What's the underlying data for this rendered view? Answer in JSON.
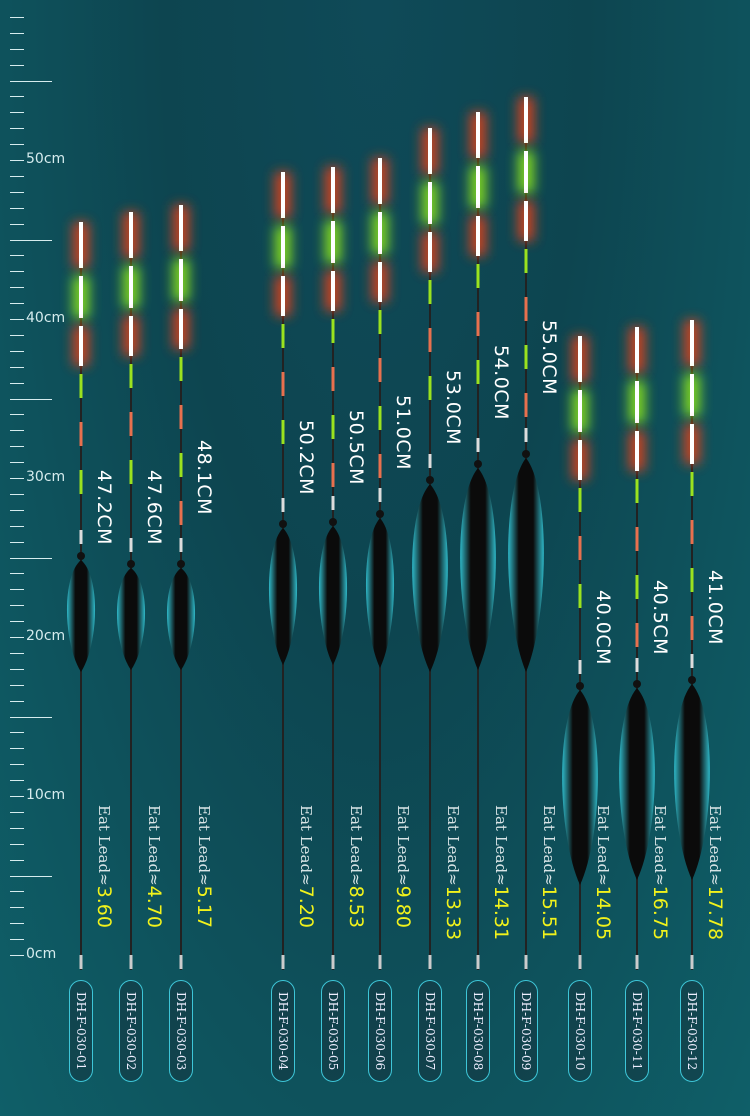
{
  "ruler": {
    "labels": [
      "0cm",
      "10cm",
      "20cm",
      "30cm",
      "40cm",
      "50cm"
    ]
  },
  "eat_lead_label": "Eat Lead",
  "approx_symbol": "≈",
  "floats": [
    {
      "model": "DH-F-030-01",
      "length": "47.2CM",
      "lead": "3.60"
    },
    {
      "model": "DH-F-030-02",
      "length": "47.6CM",
      "lead": "4.70"
    },
    {
      "model": "DH-F-030-03",
      "length": "48.1CM",
      "lead": "5.17"
    },
    {
      "model": "DH-F-030-04",
      "length": "50.2CM",
      "lead": "7.20"
    },
    {
      "model": "DH-F-030-05",
      "length": "50.5CM",
      "lead": "8.53"
    },
    {
      "model": "DH-F-030-06",
      "length": "51.0CM",
      "lead": "9.80"
    },
    {
      "model": "DH-F-030-07",
      "length": "53.0CM",
      "lead": "13.33"
    },
    {
      "model": "DH-F-030-08",
      "length": "54.0CM",
      "lead": "14.31"
    },
    {
      "model": "DH-F-030-09",
      "length": "55.0CM",
      "lead": "15.51"
    },
    {
      "model": "DH-F-030-10",
      "length": "40.0CM",
      "lead": "14.05"
    },
    {
      "model": "DH-F-030-11",
      "length": "40.5CM",
      "lead": "16.75"
    },
    {
      "model": "DH-F-030-12",
      "length": "41.0CM",
      "lead": "17.78"
    }
  ],
  "colors": {
    "red_glow": "#e0431e",
    "green_glow": "#8ee81e",
    "body": "#111",
    "body_edge": "#3fd6e6",
    "lead_value": "#f1f21b"
  }
}
